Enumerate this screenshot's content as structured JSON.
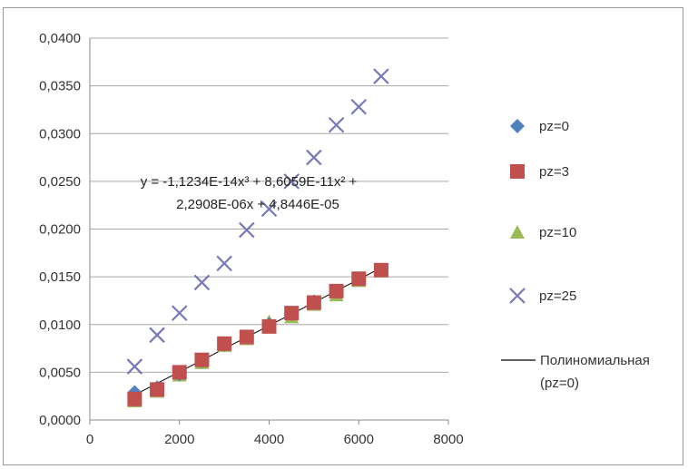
{
  "chart_data": {
    "type": "scatter",
    "xlim": [
      0,
      8000
    ],
    "ylim": [
      0,
      0.04
    ],
    "x_ticks": [
      {
        "value": 0,
        "label": "0"
      },
      {
        "value": 2000,
        "label": "2000"
      },
      {
        "value": 4000,
        "label": "4000"
      },
      {
        "value": 6000,
        "label": "6000"
      },
      {
        "value": 8000,
        "label": "8000"
      }
    ],
    "y_ticks": [
      {
        "value": 0,
        "label": "0,0000"
      },
      {
        "value": 0.005,
        "label": "0,0050"
      },
      {
        "value": 0.01,
        "label": "0,0100"
      },
      {
        "value": 0.015,
        "label": "0,0150"
      },
      {
        "value": 0.02,
        "label": "0,0200"
      },
      {
        "value": 0.025,
        "label": "0,0250"
      },
      {
        "value": 0.03,
        "label": "0,0300"
      },
      {
        "value": 0.035,
        "label": "0,0350"
      },
      {
        "value": 0.04,
        "label": "0,0400"
      }
    ],
    "grid": "horizontal",
    "legend_position": "right",
    "series": [
      {
        "name": "pz=0",
        "marker": "diamond",
        "color": "#4f81bd",
        "x": [
          1000,
          1500,
          2000,
          2500,
          3000,
          3500,
          4000,
          4500,
          5000,
          5500,
          6000,
          6500
        ],
        "y": [
          0.0029,
          0.0034,
          0.0048,
          0.0062,
          0.0079,
          0.0087,
          0.01,
          0.0111,
          0.0124,
          0.0135,
          0.0148,
          0.0157
        ]
      },
      {
        "name": "pz=3",
        "marker": "square",
        "color": "#c0504d",
        "x": [
          1000,
          1500,
          2000,
          2500,
          3000,
          3500,
          4000,
          4500,
          5000,
          5500,
          6000,
          6500
        ],
        "y": [
          0.0022,
          0.0032,
          0.005,
          0.0063,
          0.008,
          0.0087,
          0.0098,
          0.0112,
          0.0123,
          0.0135,
          0.0148,
          0.0157
        ]
      },
      {
        "name": "pz=10",
        "marker": "triangle",
        "color": "#9bbb59",
        "x": [
          1000,
          1500,
          2000,
          2500,
          3000,
          3500,
          4000,
          4500,
          5000,
          5500,
          6000,
          6500
        ],
        "y": [
          0.002,
          0.003,
          0.0047,
          0.006,
          0.0078,
          0.0085,
          0.0103,
          0.0108,
          0.0121,
          0.0131,
          0.0146,
          0.0156
        ]
      },
      {
        "name": "pz=25",
        "marker": "x",
        "color": "#7878b8",
        "x": [
          1000,
          1500,
          2000,
          2500,
          3000,
          3500,
          4000,
          4500,
          5000,
          5500,
          6000,
          6500
        ],
        "y": [
          0.0056,
          0.0089,
          0.0112,
          0.0144,
          0.0164,
          0.0199,
          0.0221,
          0.025,
          0.0275,
          0.0309,
          0.0328,
          0.036
        ]
      }
    ],
    "trendline": {
      "name_line1": "Полиномиальная",
      "name_line2": "(pz=0)",
      "color": "#000000",
      "x_start": 1000,
      "x_end": 6500,
      "equation_line1": "y = -1,1234E-14x³ + 8,6059E-11x² +",
      "equation_line2": "2,2908E-06x + 4,8446E-05"
    }
  }
}
